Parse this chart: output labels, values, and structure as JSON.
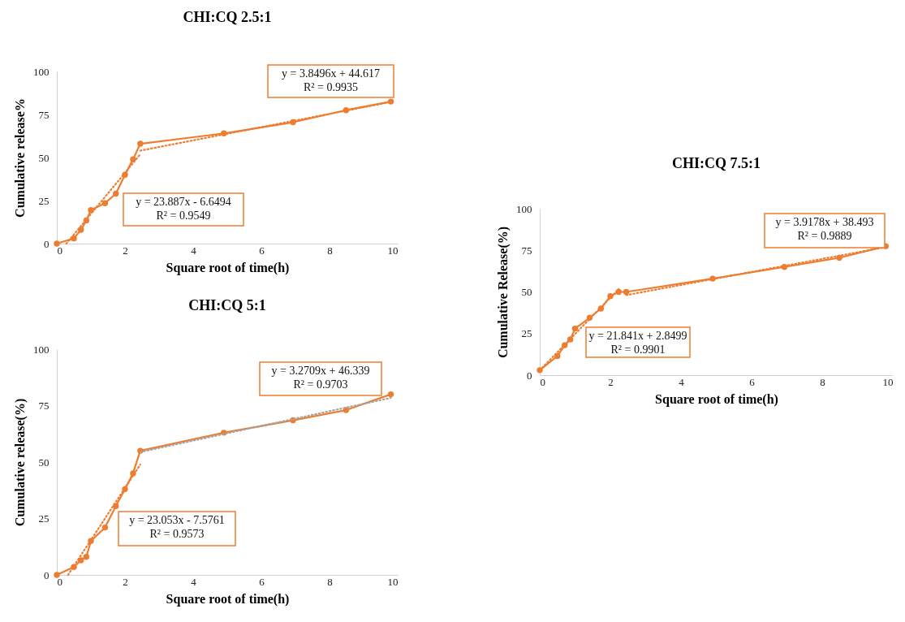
{
  "chart_data": [
    {
      "type": "line",
      "title": "CHI:CQ 2.5:1",
      "xlabel": "Square root of time(h)",
      "ylabel": "Cumulative release%",
      "xlim": [
        0,
        10
      ],
      "ylim": [
        0,
        100
      ],
      "xticks": [
        0,
        2,
        4,
        6,
        8,
        10
      ],
      "yticks": [
        0,
        25,
        50,
        75,
        100
      ],
      "marker": "circle",
      "line_style": "solid",
      "series": [
        {
          "color": "#ed7d31",
          "x": [
            0,
            0.5,
            0.707,
            0.866,
            1,
            1.414,
            1.732,
            2,
            2.236,
            2.449,
            4.899,
            6.928,
            8.485,
            9.798
          ],
          "values": [
            0,
            3,
            8,
            13.5,
            19.5,
            23.5,
            29,
            40,
            49,
            58,
            64,
            70.5,
            77.5,
            82.5
          ]
        },
        {
          "type": "line",
          "color": "#ed7d31",
          "marker": "none",
          "line_style": "dotted",
          "x": [
            0.28,
            2.449
          ],
          "values": [
            0,
            51.9
          ]
        },
        {
          "type": "line",
          "color": "#ed7d31",
          "marker": "none",
          "line_style": "dotted",
          "x": [
            2.449,
            9.798
          ],
          "values": [
            54,
            82.3
          ]
        }
      ],
      "annotations": [
        "y = 3.8496x + 44.617\nR² = 0.9935",
        "y = 23.887x - 6.6494\nR² = 0.9549"
      ]
    },
    {
      "type": "line",
      "title": "CHI:CQ 5:1",
      "xlabel": "Square root of time(h)",
      "ylabel": "Cumulative release(%)",
      "xlim": [
        0,
        10
      ],
      "ylim": [
        0,
        100
      ],
      "xticks": [
        0,
        2,
        4,
        6,
        8,
        10
      ],
      "yticks": [
        0,
        25,
        50,
        75,
        100
      ],
      "marker": "circle",
      "line_style": "solid",
      "series": [
        {
          "color": "#ed7d31",
          "x": [
            0,
            0.5,
            0.707,
            0.866,
            1,
            1.414,
            1.732,
            2,
            2.236,
            2.449,
            4.899,
            6.928,
            8.485,
            9.798
          ],
          "values": [
            0,
            3.5,
            6.5,
            8,
            15,
            21,
            30.5,
            38,
            45,
            55,
            63,
            68.5,
            73,
            80
          ]
        },
        {
          "type": "line",
          "color": "#ed7d31",
          "marker": "none",
          "line_style": "dotted",
          "x": [
            0.33,
            2.449
          ],
          "values": [
            0,
            48.9
          ]
        },
        {
          "type": "line",
          "color": "#a5a5a5",
          "marker": "none",
          "line_style": "dotted",
          "x": [
            2.449,
            9.798
          ],
          "values": [
            54.4,
            78.4
          ]
        }
      ],
      "annotations": [
        "y = 3.2709x + 46.339\nR² = 0.9703",
        "y = 23.053x - 7.5761\nR² = 0.9573"
      ]
    },
    {
      "type": "line",
      "title": "CHI:CQ 7.5:1",
      "xlabel": "Square root of time(h)",
      "ylabel": "Cumulative Release(%)",
      "xlim": [
        0,
        10
      ],
      "ylim": [
        0,
        100
      ],
      "xticks": [
        0,
        2,
        4,
        6,
        8,
        10
      ],
      "yticks": [
        0,
        25,
        50,
        75,
        100
      ],
      "marker": "circle",
      "line_style": "solid",
      "series": [
        {
          "color": "#ed7d31",
          "x": [
            0,
            0.5,
            0.707,
            0.866,
            1,
            1.414,
            1.732,
            2,
            2.236,
            2.449,
            4.899,
            6.928,
            8.485,
            9.798
          ],
          "values": [
            3,
            11.5,
            18,
            21.5,
            28,
            34.5,
            40,
            47.5,
            50,
            50,
            58,
            65,
            70.5,
            77.5
          ]
        },
        {
          "type": "line",
          "color": "#ed7d31",
          "marker": "none",
          "line_style": "dotted",
          "x": [
            0,
            2.236
          ],
          "values": [
            2.9,
            51.7
          ]
        },
        {
          "type": "line",
          "color": "#ed7d31",
          "marker": "none",
          "line_style": "dotted",
          "x": [
            2.449,
            9.798
          ],
          "values": [
            48.1,
            76.9
          ]
        }
      ],
      "annotations": [
        "y = 3.9178x + 38.493\nR² = 0.9889",
        "y = 21.841x + 2.8499\nR² = 0.9901"
      ]
    }
  ]
}
